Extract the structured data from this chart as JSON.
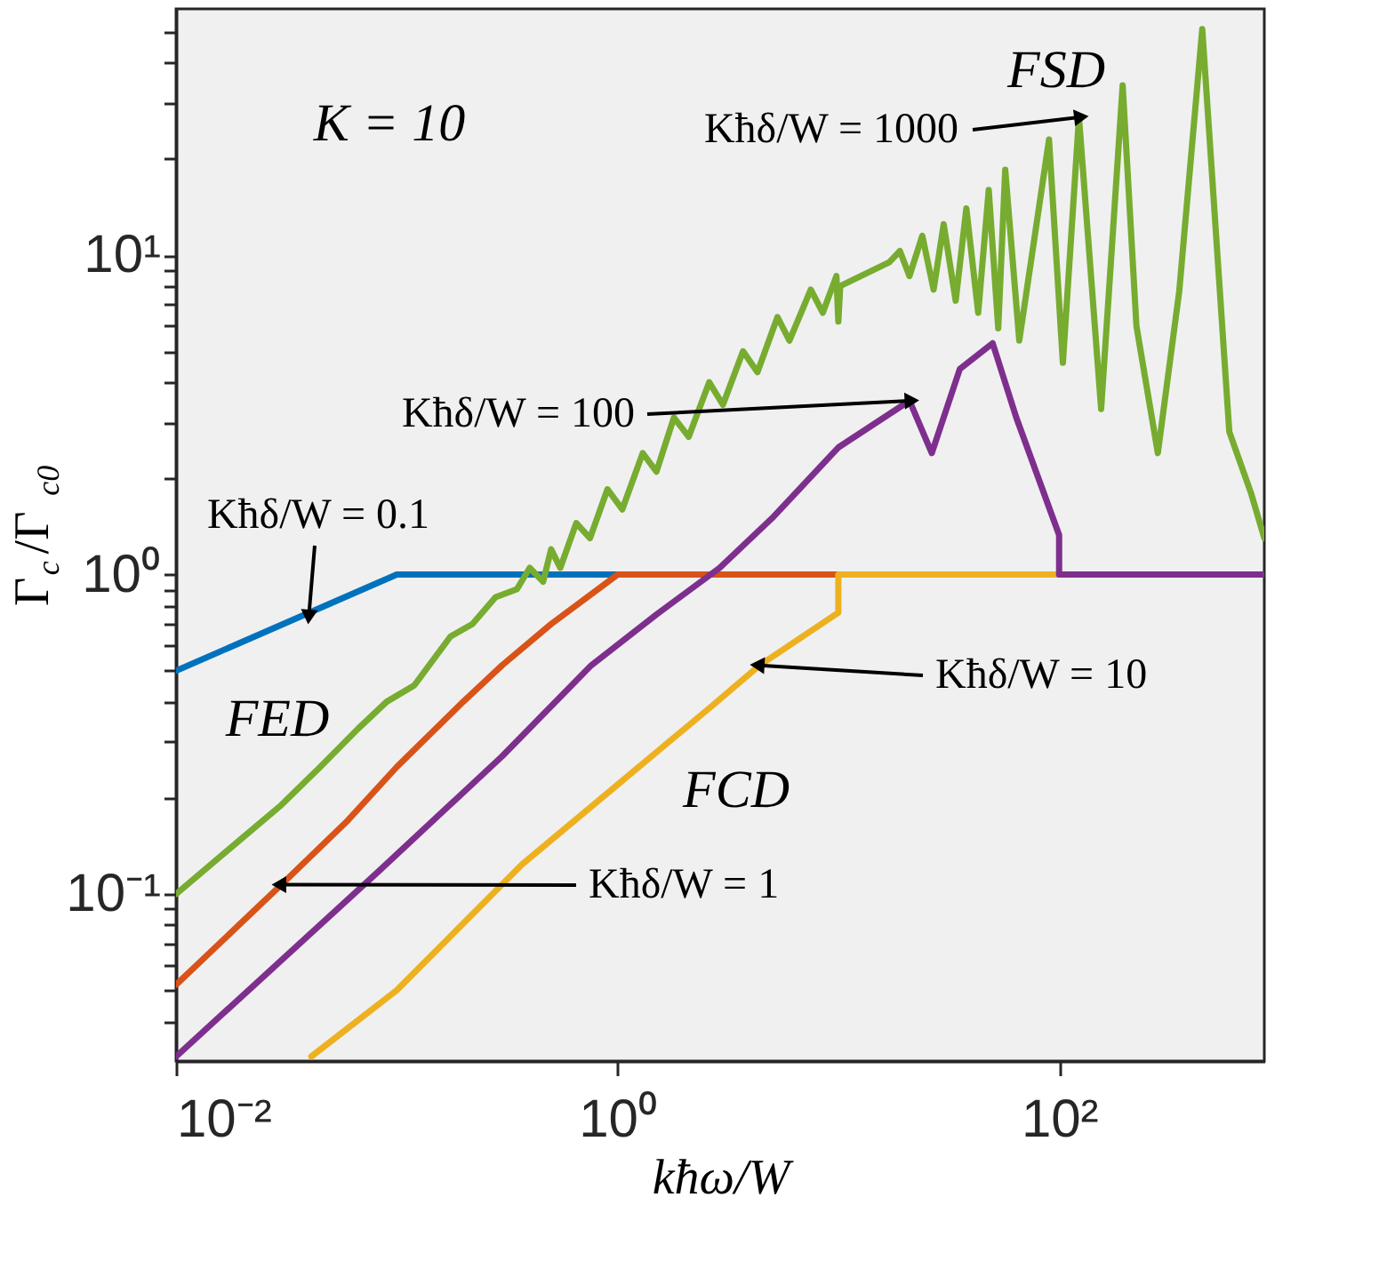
{
  "chart_data": {
    "type": "line",
    "xlabel": "kħω/W",
    "ylabel": "Γ$_{c}$/Γ$_{c0}$",
    "log": "xy",
    "grid": false,
    "legend": false,
    "marker": "none",
    "line_style": "solid",
    "xlim": [
      0.01,
      850
    ],
    "ylim": [
      0.03,
      59
    ],
    "xticks": [
      {
        "value": 0.01,
        "label": "10⁻²"
      },
      {
        "value": 1,
        "label": "10⁰"
      },
      {
        "value": 100,
        "label": "10²"
      }
    ],
    "yticks": [
      {
        "value": 0.04,
        "label": null
      },
      {
        "value": 0.05,
        "label": null
      },
      {
        "value": 0.06,
        "label": null
      },
      {
        "value": 0.07,
        "label": null
      },
      {
        "value": 0.08,
        "label": null
      },
      {
        "value": 0.09,
        "label": null
      },
      {
        "value": 0.1,
        "label": "10⁻¹"
      },
      {
        "value": 0.2,
        "label": null
      },
      {
        "value": 0.3,
        "label": null
      },
      {
        "value": 0.4,
        "label": null
      },
      {
        "value": 0.5,
        "label": null
      },
      {
        "value": 0.6,
        "label": null
      },
      {
        "value": 0.7,
        "label": null
      },
      {
        "value": 0.8,
        "label": null
      },
      {
        "value": 0.9,
        "label": null
      },
      {
        "value": 1,
        "label": "10⁰"
      },
      {
        "value": 2,
        "label": null
      },
      {
        "value": 3,
        "label": null
      },
      {
        "value": 4,
        "label": null
      },
      {
        "value": 5,
        "label": null
      },
      {
        "value": 6,
        "label": null
      },
      {
        "value": 7,
        "label": null
      },
      {
        "value": 8,
        "label": null
      },
      {
        "value": 9,
        "label": null
      },
      {
        "value": 10,
        "label": "10¹"
      },
      {
        "value": 20,
        "label": null
      },
      {
        "value": 30,
        "label": null
      },
      {
        "value": 40,
        "label": null
      },
      {
        "value": 50,
        "label": null
      }
    ],
    "series": [
      {
        "color": "#0072bd",
        "x": [
          0.01,
          0.1,
          1
        ],
        "values": [
          0.5,
          1,
          1
        ]
      },
      {
        "color": "#d95319",
        "x": [
          0.01,
          0.03,
          0.06,
          0.1,
          0.2,
          0.3,
          0.5,
          1,
          10
        ],
        "values": [
          0.052,
          0.107,
          0.17,
          0.25,
          0.4,
          0.52,
          0.7,
          1,
          1
        ]
      },
      {
        "color": "#edb120",
        "x": [
          0.041,
          0.1,
          0.37,
          1,
          2.7,
          4.4,
          10,
          10,
          100
        ],
        "values": [
          0.031,
          0.05,
          0.124,
          0.22,
          0.39,
          0.52,
          0.76,
          1,
          1
        ]
      },
      {
        "color": "#7e2f8e",
        "x": [
          0.01,
          0.083,
          0.3,
          0.76,
          1.5,
          2.9,
          5,
          10,
          21,
          26.5,
          35.5,
          50,
          64,
          100,
          100,
          850
        ],
        "values": [
          0.031,
          0.118,
          0.27,
          0.52,
          0.75,
          1.05,
          1.5,
          2.5,
          3.5,
          2.4,
          4.4,
          5.3,
          3.1,
          1.33,
          1,
          1
        ]
      },
      {
        "color": "#77ac30",
        "x": [
          0.01,
          0.02,
          0.03,
          0.045,
          0.067,
          0.09,
          0.12,
          0.175,
          0.22,
          0.28,
          0.35,
          0.4,
          0.46,
          0.5,
          0.55,
          0.65,
          0.75,
          0.9,
          1.05,
          1.3,
          1.5,
          1.8,
          2.1,
          2.6,
          3,
          3.7,
          4.3,
          5.3,
          6,
          7.5,
          8.5,
          9.8,
          10,
          10.2,
          17,
          19,
          21,
          24,
          27,
          30,
          34,
          38,
          43,
          48,
          53,
          57,
          66,
          90,
          104,
          123,
          155,
          194,
          224,
          280,
          350,
          445,
          590,
          740,
          850
        ],
        "values": [
          0.1,
          0.15,
          0.19,
          0.25,
          0.33,
          0.4,
          0.45,
          0.64,
          0.7,
          0.85,
          0.9,
          1.05,
          0.95,
          1.2,
          1.05,
          1.45,
          1.3,
          1.85,
          1.6,
          2.4,
          2.1,
          3.1,
          2.7,
          4.0,
          3.4,
          5.0,
          4.3,
          6.4,
          5.4,
          7.8,
          6.6,
          8.6,
          6.2,
          8.0,
          9.5,
          10.3,
          8.6,
          11.5,
          7.8,
          12.5,
          7.2,
          14,
          6.6,
          16,
          5.9,
          18.5,
          5.4,
          23,
          4.6,
          27,
          3.3,
          34,
          6,
          2.4,
          7.7,
          51,
          2.8,
          1.8,
          1.3
        ]
      }
    ],
    "annotations": [
      "K = 10",
      "FSD",
      "FED",
      "FCD",
      {
        "text": "Kħδ/W = 1000",
        "x": 123,
        "y": 27
      },
      {
        "text": "Kħδ/W = 100",
        "x": 21,
        "y": 3.5
      },
      {
        "text": "Kħδ/W = 0.1",
        "x": 0.04,
        "y": 0.75
      },
      {
        "text": "Kħδ/W = 10",
        "x": 4.4,
        "y": 0.52
      },
      {
        "text": "Kħδ/W = 1",
        "x": 0.03,
        "y": 0.107
      }
    ]
  }
}
